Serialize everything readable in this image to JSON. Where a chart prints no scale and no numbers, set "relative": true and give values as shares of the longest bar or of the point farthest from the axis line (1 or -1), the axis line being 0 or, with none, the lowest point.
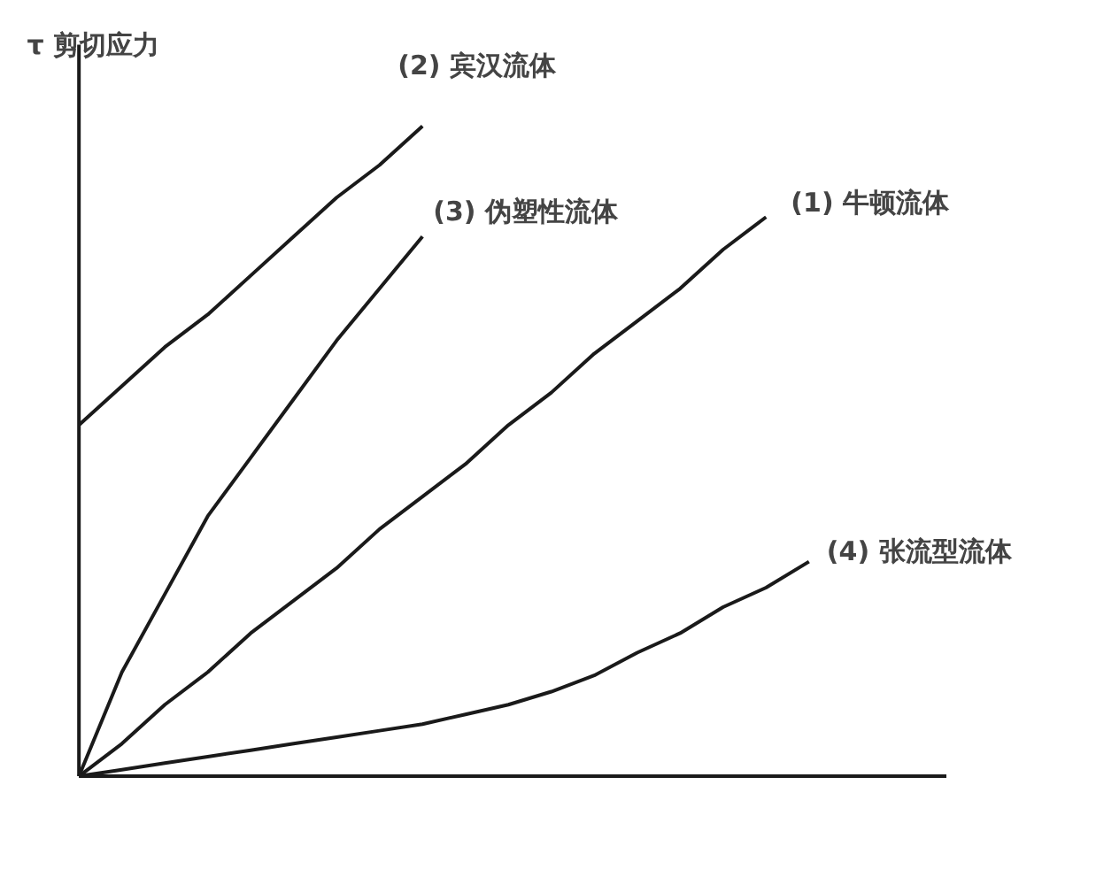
{
  "chart_data": {
    "type": "line",
    "relative": true,
    "ylabel": "τ 剪切应力",
    "categories": [
      null,
      null,
      null,
      null,
      null,
      null,
      null,
      null,
      null,
      null,
      null,
      null,
      null,
      null,
      null,
      null,
      null,
      null
    ],
    "grid": false,
    "marker": "none",
    "line_style": "solid",
    "series": [
      {
        "color": "#1a1a1a",
        "values": [
          0,
          0.05,
          0.11,
          0.16,
          0.22,
          0.27,
          0.32,
          0.38,
          0.43,
          0.48,
          0.54,
          0.59,
          0.65,
          0.7,
          0.75,
          0.81,
          0.86,
          null
        ]
      },
      {
        "color": "#1a1a1a",
        "values": [
          0.54,
          0.6,
          0.66,
          0.71,
          0.77,
          0.83,
          0.89,
          0.94,
          1,
          null,
          null,
          null,
          null,
          null,
          null,
          null,
          null,
          null
        ]
      },
      {
        "color": "#1a1a1a",
        "values": [
          0,
          0.16,
          0.28,
          0.4,
          0.49,
          0.58,
          0.67,
          0.75,
          0.83,
          null,
          null,
          null,
          null,
          null,
          null,
          null,
          null,
          null
        ]
      },
      {
        "color": "#1a1a1a",
        "values": [
          0,
          0.01,
          0.02,
          0.03,
          0.04,
          0.05,
          0.06,
          0.07,
          0.08,
          0.095,
          0.11,
          0.13,
          0.155,
          0.19,
          0.22,
          0.26,
          0.29,
          0.33
        ]
      }
    ],
    "annotations": [
      "(1) 牛顿流体",
      "(2) 宾汉流体",
      "(3) 伪塑性流体",
      "(4) 张流型流体"
    ]
  }
}
